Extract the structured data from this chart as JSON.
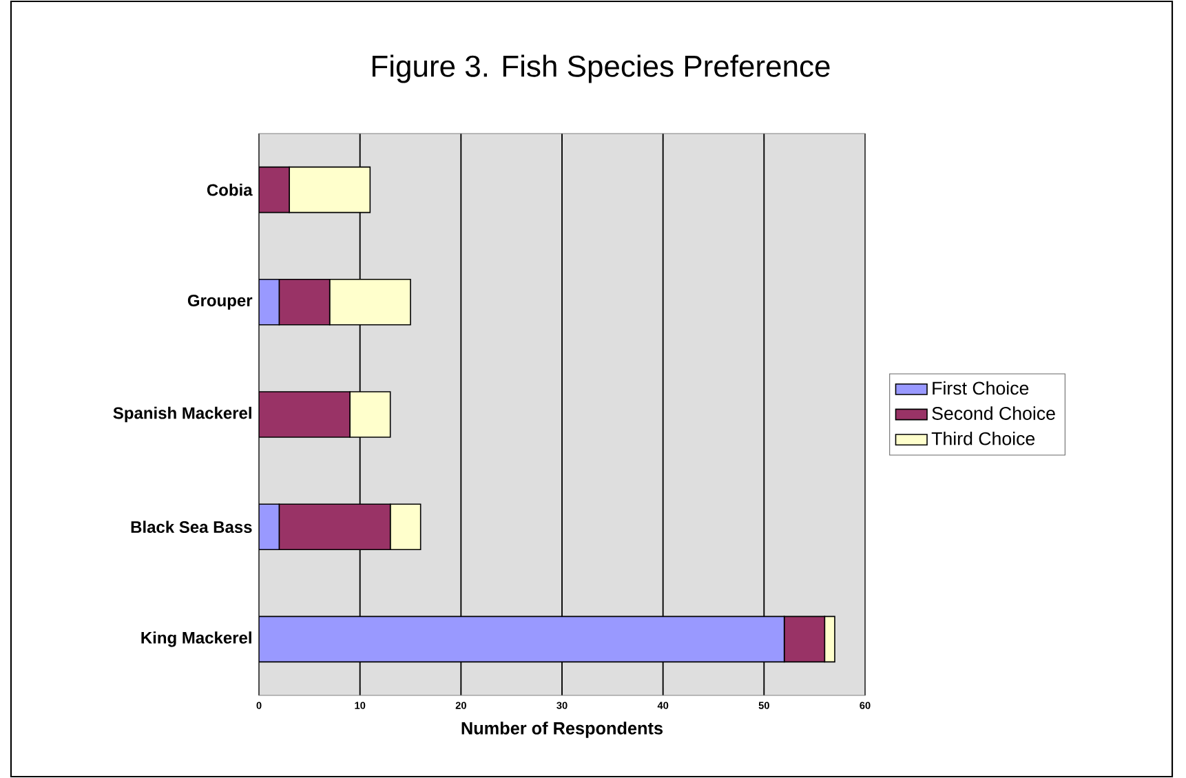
{
  "chart_data": {
    "type": "bar",
    "orientation": "horizontal",
    "stacked": true,
    "title": "Figure 3.  Fish Species Preference",
    "xlabel": "Number of Respondents",
    "categories": [
      "Cobia",
      "Grouper",
      "Spanish Mackerel",
      "Black Sea Bass",
      "King Mackerel"
    ],
    "series": [
      {
        "name": "First Choice",
        "color": "#9999ff",
        "values": [
          0,
          2,
          0,
          2,
          52
        ]
      },
      {
        "name": "Second Choice",
        "color": "#993366",
        "values": [
          3,
          5,
          9,
          11,
          4
        ]
      },
      {
        "name": "Third Choice",
        "color": "#ffffcc",
        "values": [
          8,
          8,
          4,
          3,
          1
        ]
      }
    ],
    "xlim": [
      0,
      60
    ],
    "xticks": [
      0,
      10,
      20,
      30,
      40,
      50,
      60
    ],
    "grid": "x",
    "legend": "right"
  }
}
